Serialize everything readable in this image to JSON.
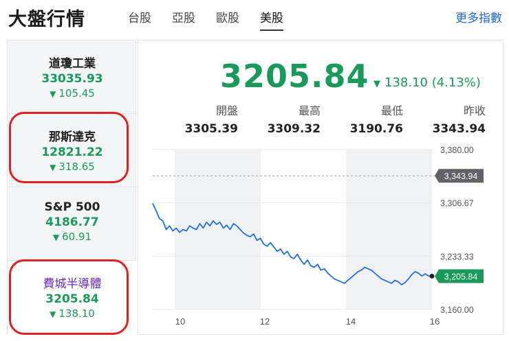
{
  "header": {
    "title": "大盤行情",
    "tabs": [
      {
        "label": "台股",
        "active": false
      },
      {
        "label": "亞股",
        "active": false
      },
      {
        "label": "歐股",
        "active": false
      },
      {
        "label": "美股",
        "active": true
      }
    ],
    "more_label": "更多指數"
  },
  "sidebar": {
    "indices": [
      {
        "name": "道瓊工業",
        "price": "33035.93",
        "change": "105.45"
      },
      {
        "name": "那斯達克",
        "price": "12821.22",
        "change": "318.65"
      },
      {
        "name": "S&P 500",
        "price": "4186.77",
        "change": "60.91"
      },
      {
        "name": "費城半導體",
        "price": "3205.84",
        "change": "138.10"
      }
    ],
    "down_arrow": "▼"
  },
  "main": {
    "price": "3205.84",
    "change": "138.10 (4.13%)",
    "stats": [
      {
        "label": "開盤",
        "value": "3305.39"
      },
      {
        "label": "最高",
        "value": "3309.32"
      },
      {
        "label": "最低",
        "value": "3190.76"
      },
      {
        "label": "昨收",
        "value": "3343.94"
      }
    ]
  },
  "colors": {
    "down": "#1a9a5a",
    "accent": "#1a66d6",
    "highlight_ring": "#e0211f",
    "selected_name": "#6a2cc2"
  },
  "chart_data": {
    "type": "line",
    "x_ticks": [
      "10",
      "12",
      "14",
      "16"
    ],
    "y_ticks": [
      "3,380.00",
      "3,306.67",
      "3,233.33",
      "3,160.00"
    ],
    "ylim": [
      3160,
      3380
    ],
    "prev_close_label": "3,343.94",
    "prev_close": 3343.94,
    "last_label": "3,205.84",
    "last": 3205.84,
    "values": [
      3306,
      3296,
      3285,
      3282,
      3270,
      3275,
      3268,
      3272,
      3266,
      3270,
      3268,
      3275,
      3272,
      3270,
      3278,
      3272,
      3280,
      3275,
      3282,
      3277,
      3280,
      3272,
      3276,
      3270,
      3278,
      3275,
      3270,
      3265,
      3262,
      3260,
      3264,
      3255,
      3258,
      3250,
      3247,
      3252,
      3246,
      3240,
      3243,
      3236,
      3240,
      3232,
      3230,
      3236,
      3228,
      3222,
      3228,
      3220,
      3218,
      3222,
      3214,
      3216,
      3210,
      3206,
      3202,
      3200,
      3198,
      3196,
      3200,
      3204,
      3208,
      3212,
      3214,
      3218,
      3216,
      3214,
      3210,
      3206,
      3202,
      3200,
      3198,
      3196,
      3200,
      3198,
      3194,
      3197,
      3202,
      3208,
      3212,
      3210,
      3206,
      3209,
      3206,
      3205.84
    ]
  }
}
